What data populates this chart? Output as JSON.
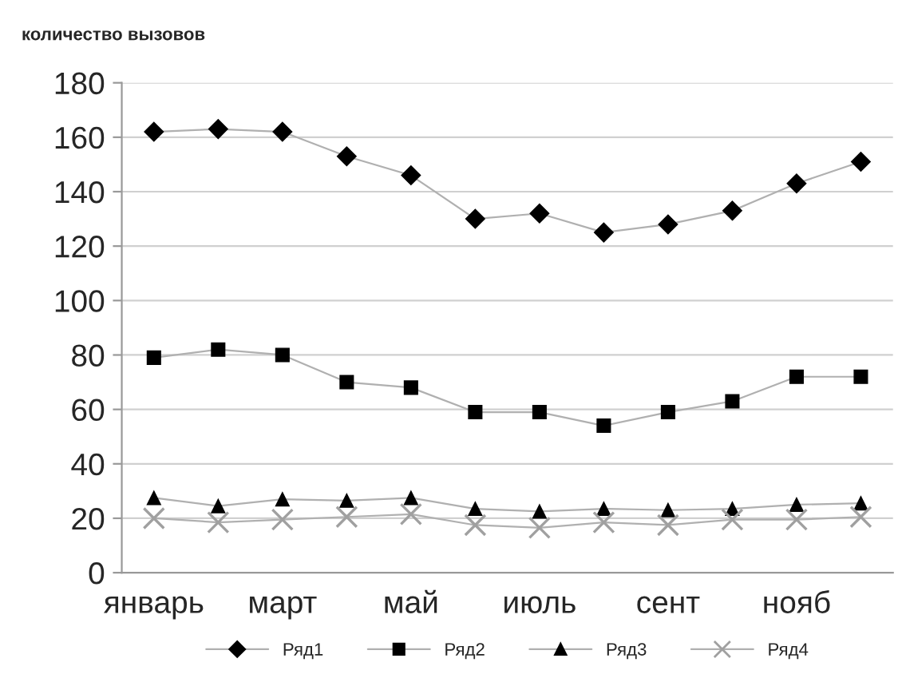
{
  "chart_data": {
    "type": "line",
    "title": "количество вызовов",
    "categories": [
      "январь",
      null,
      "март",
      null,
      "май",
      null,
      "июль",
      null,
      "сент",
      null,
      "нояб",
      null
    ],
    "series": [
      {
        "name": "Ряд1",
        "color": "#000000",
        "marker": "diamond",
        "values": [
          162,
          163,
          162,
          153,
          146,
          130,
          132,
          125,
          128,
          133,
          143,
          151
        ]
      },
      {
        "name": "Ряд2",
        "color": "#000000",
        "marker": "square",
        "values": [
          79,
          82,
          80,
          70,
          68,
          59,
          59,
          54,
          59,
          63,
          72,
          72
        ]
      },
      {
        "name": "Ряд3",
        "color": "#000000",
        "marker": "triangle",
        "values": [
          27.5,
          24.5,
          27,
          26.5,
          27.5,
          23.5,
          22.5,
          23.5,
          23,
          23.5,
          25,
          25.5
        ]
      },
      {
        "name": "Ряд4",
        "color": "#a0a0a0",
        "marker": "cross",
        "values": [
          20,
          18.5,
          19.5,
          20.5,
          21.5,
          17.5,
          16.5,
          18.5,
          17.5,
          19.5,
          19.5,
          20.5
        ]
      }
    ],
    "ylim": [
      0,
      180
    ],
    "yticks": [
      0,
      20,
      40,
      60,
      80,
      100,
      120,
      140,
      160,
      180
    ],
    "grid": "y",
    "legend": "bottom"
  }
}
